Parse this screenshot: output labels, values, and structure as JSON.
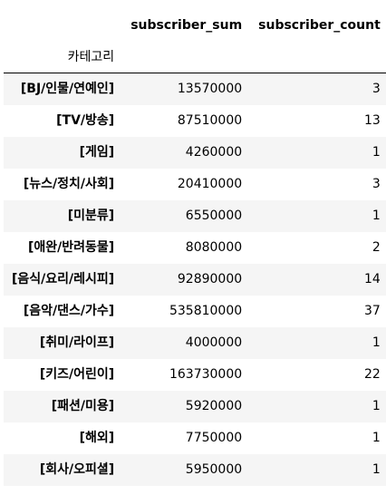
{
  "table": {
    "columns": [
      "subscriber_sum",
      "subscriber_count"
    ],
    "index_name": "카테고리",
    "rows": [
      {
        "category": "[BJ/인물/연예인]",
        "subscriber_sum": "13570000",
        "subscriber_count": "3"
      },
      {
        "category": "[TV/방송]",
        "subscriber_sum": "87510000",
        "subscriber_count": "13"
      },
      {
        "category": "[게임]",
        "subscriber_sum": "4260000",
        "subscriber_count": "1"
      },
      {
        "category": "[뉴스/정치/사회]",
        "subscriber_sum": "20410000",
        "subscriber_count": "3"
      },
      {
        "category": "[미분류]",
        "subscriber_sum": "6550000",
        "subscriber_count": "1"
      },
      {
        "category": "[애완/반려동물]",
        "subscriber_sum": "8080000",
        "subscriber_count": "2"
      },
      {
        "category": "[음식/요리/레시피]",
        "subscriber_sum": "92890000",
        "subscriber_count": "14"
      },
      {
        "category": "[음악/댄스/가수]",
        "subscriber_sum": "535810000",
        "subscriber_count": "37"
      },
      {
        "category": "[취미/라이프]",
        "subscriber_sum": "4000000",
        "subscriber_count": "1"
      },
      {
        "category": "[키즈/어린이]",
        "subscriber_sum": "163730000",
        "subscriber_count": "22"
      },
      {
        "category": "[패션/미용]",
        "subscriber_sum": "5920000",
        "subscriber_count": "1"
      },
      {
        "category": "[해외]",
        "subscriber_sum": "7750000",
        "subscriber_count": "1"
      },
      {
        "category": "[회사/오피셜]",
        "subscriber_sum": "5950000",
        "subscriber_count": "1"
      }
    ]
  }
}
